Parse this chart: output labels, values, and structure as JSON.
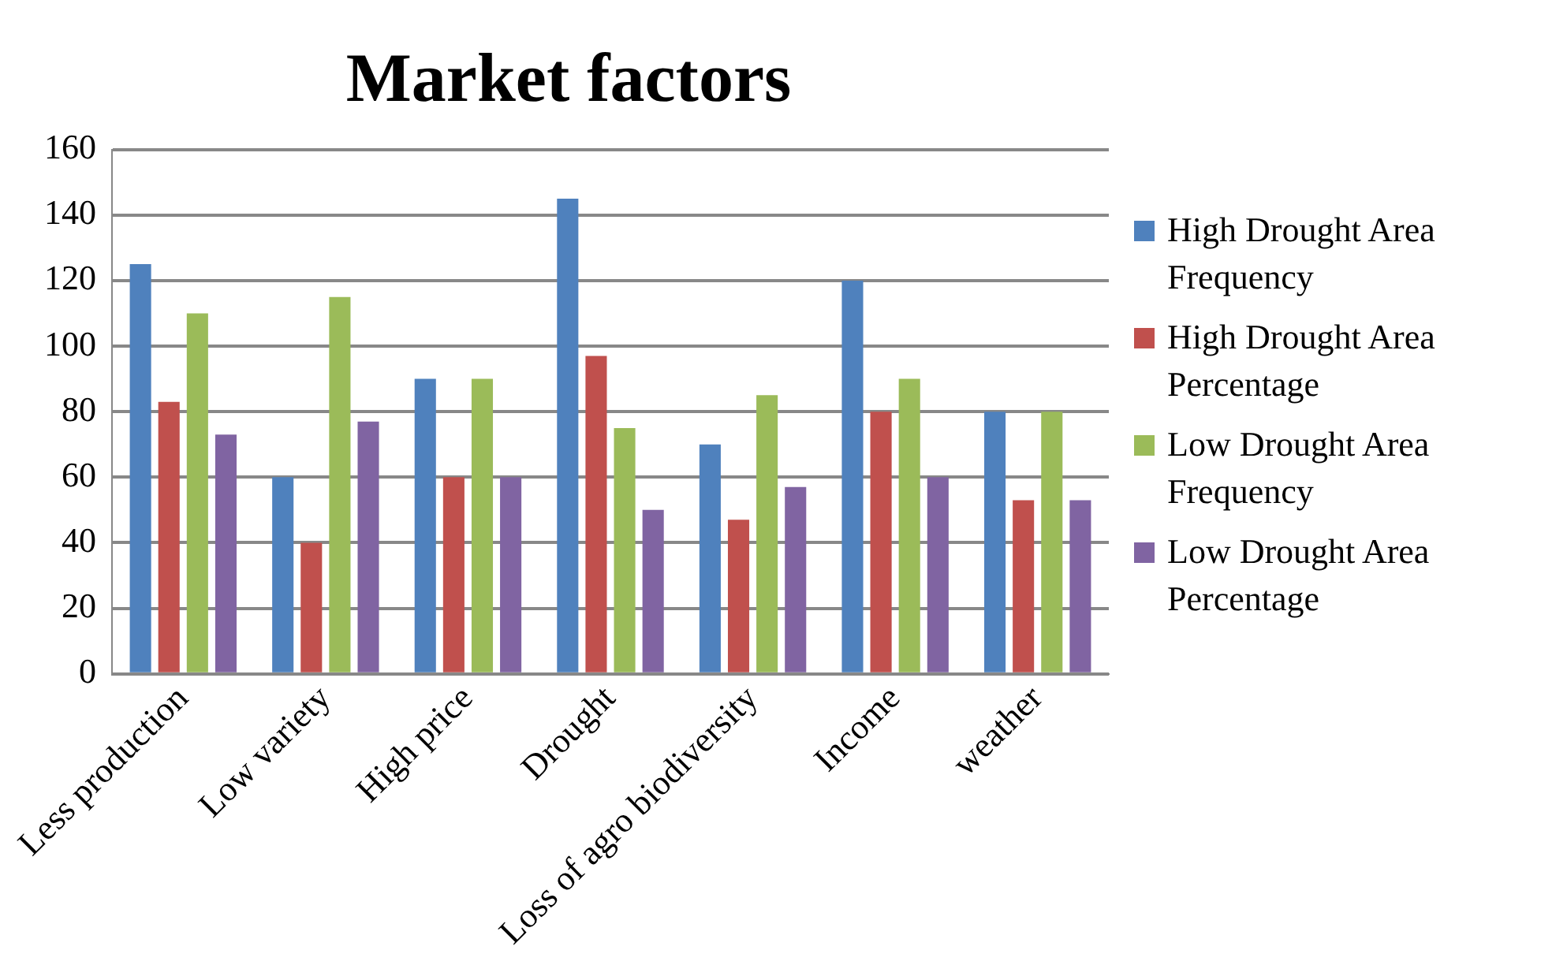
{
  "chart_data": {
    "type": "bar",
    "title": "Market factors",
    "categories": [
      "Less production",
      "Low variety",
      "High price",
      "Drought",
      "Loss of agro biodiversity",
      "Income",
      "weather"
    ],
    "series": [
      {
        "name": "High Drought Area Frequency",
        "color": "#4f81bd",
        "values": [
          125,
          60,
          90,
          145,
          70,
          120,
          80
        ]
      },
      {
        "name": "High Drought Area Percentage",
        "color": "#c0504d",
        "values": [
          83,
          40,
          60,
          97,
          47,
          80,
          53
        ]
      },
      {
        "name": "Low Drought Area Frequency",
        "color": "#9bbb59",
        "values": [
          110,
          115,
          90,
          75,
          85,
          90,
          80
        ]
      },
      {
        "name": "Low Drought Area Percentage",
        "color": "#8064a2",
        "values": [
          73,
          77,
          60,
          50,
          57,
          60,
          53
        ]
      }
    ],
    "ylim": [
      0,
      160
    ],
    "yticks": [
      0,
      20,
      40,
      60,
      80,
      100,
      120,
      140,
      160
    ],
    "grid": "y",
    "legend": "right"
  }
}
